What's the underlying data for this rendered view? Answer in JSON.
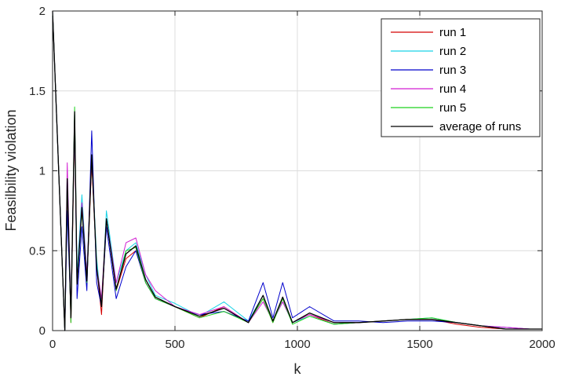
{
  "chart_data": {
    "type": "line",
    "xlabel": "k",
    "ylabel": "Feasilbility violation",
    "xlim": [
      0,
      2000
    ],
    "ylim": [
      0,
      2
    ],
    "xticks": [
      0,
      500,
      1000,
      1500,
      2000
    ],
    "yticks": [
      0,
      0.5,
      1,
      1.5,
      2
    ],
    "xtick_labels": [
      "0",
      "500",
      "1000",
      "1500",
      "2000"
    ],
    "ytick_labels": [
      "0",
      "0.5",
      "1",
      "1.5",
      "2"
    ],
    "grid": true,
    "legend_position": "top-right",
    "series": [
      {
        "name": "run 1",
        "color": "#d40000",
        "x": [
          0,
          50,
          60,
          75,
          90,
          100,
          120,
          140,
          160,
          180,
          200,
          220,
          260,
          300,
          340,
          380,
          420,
          500,
          600,
          700,
          800,
          860,
          900,
          940,
          980,
          1050,
          1150,
          1250,
          1350,
          1450,
          1550,
          1650,
          1750,
          1850,
          1950,
          2000
        ],
        "y": [
          2,
          0,
          0.9,
          0.05,
          1.3,
          0.3,
          0.8,
          0.3,
          1.05,
          0.4,
          0.1,
          0.7,
          0.25,
          0.45,
          0.5,
          0.3,
          0.2,
          0.15,
          0.08,
          0.15,
          0.05,
          0.2,
          0.05,
          0.2,
          0.05,
          0.1,
          0.04,
          0.05,
          0.06,
          0.07,
          0.07,
          0.04,
          0.02,
          0.01,
          0.01,
          0.01
        ]
      },
      {
        "name": "run 2",
        "color": "#19d2e6",
        "x": [
          0,
          50,
          60,
          75,
          90,
          100,
          120,
          140,
          160,
          180,
          200,
          220,
          260,
          300,
          340,
          380,
          420,
          500,
          600,
          700,
          800,
          860,
          900,
          940,
          980,
          1050,
          1150,
          1250,
          1350,
          1450,
          1550,
          1650,
          1750,
          1850,
          1950,
          2000
        ],
        "y": [
          2,
          0,
          1.0,
          0.1,
          1.35,
          0.35,
          0.85,
          0.35,
          1.1,
          0.45,
          0.15,
          0.75,
          0.3,
          0.5,
          0.55,
          0.35,
          0.22,
          0.17,
          0.09,
          0.18,
          0.06,
          0.22,
          0.06,
          0.18,
          0.05,
          0.09,
          0.04,
          0.05,
          0.06,
          0.07,
          0.08,
          0.05,
          0.03,
          0.01,
          0.01,
          0.01
        ]
      },
      {
        "name": "run 3",
        "color": "#0000cc",
        "x": [
          0,
          50,
          60,
          75,
          90,
          100,
          120,
          140,
          160,
          180,
          200,
          220,
          260,
          300,
          340,
          380,
          420,
          500,
          600,
          700,
          800,
          860,
          900,
          940,
          980,
          1050,
          1150,
          1250,
          1350,
          1450,
          1550,
          1650,
          1750,
          1850,
          1950,
          2000
        ],
        "y": [
          2,
          0,
          0.75,
          0.1,
          1.35,
          0.2,
          0.65,
          0.25,
          1.25,
          0.3,
          0.15,
          0.65,
          0.2,
          0.4,
          0.5,
          0.3,
          0.2,
          0.15,
          0.1,
          0.12,
          0.06,
          0.3,
          0.08,
          0.3,
          0.08,
          0.15,
          0.06,
          0.06,
          0.05,
          0.06,
          0.06,
          0.05,
          0.03,
          0.02,
          0.01,
          0.01
        ]
      },
      {
        "name": "run 4",
        "color": "#d21ed2",
        "x": [
          0,
          50,
          60,
          75,
          90,
          100,
          120,
          140,
          160,
          180,
          200,
          220,
          260,
          300,
          340,
          380,
          420,
          500,
          600,
          700,
          800,
          860,
          900,
          940,
          980,
          1050,
          1150,
          1250,
          1350,
          1450,
          1550,
          1650,
          1750,
          1850,
          1950,
          2000
        ],
        "y": [
          2,
          0,
          1.05,
          0.1,
          1.35,
          0.3,
          0.8,
          0.35,
          1.08,
          0.4,
          0.2,
          0.7,
          0.3,
          0.55,
          0.58,
          0.35,
          0.25,
          0.15,
          0.1,
          0.15,
          0.05,
          0.18,
          0.06,
          0.18,
          0.05,
          0.1,
          0.05,
          0.05,
          0.06,
          0.07,
          0.07,
          0.05,
          0.03,
          0.02,
          0.01,
          0.01
        ]
      },
      {
        "name": "run 5",
        "color": "#1ed21e",
        "x": [
          0,
          50,
          60,
          75,
          90,
          100,
          120,
          140,
          160,
          180,
          200,
          220,
          260,
          300,
          340,
          380,
          420,
          500,
          600,
          700,
          800,
          860,
          900,
          940,
          980,
          1050,
          1150,
          1250,
          1350,
          1450,
          1550,
          1650,
          1750,
          1850,
          1950,
          2000
        ],
        "y": [
          2,
          0,
          0.95,
          0.05,
          1.4,
          0.3,
          0.75,
          0.3,
          1.1,
          0.4,
          0.15,
          0.7,
          0.25,
          0.5,
          0.52,
          0.3,
          0.2,
          0.15,
          0.08,
          0.12,
          0.05,
          0.2,
          0.05,
          0.2,
          0.04,
          0.09,
          0.04,
          0.05,
          0.06,
          0.07,
          0.08,
          0.05,
          0.03,
          0.01,
          0.01,
          0.01
        ]
      },
      {
        "name": "average of runs",
        "color": "#000000",
        "x": [
          0,
          50,
          60,
          75,
          90,
          100,
          120,
          140,
          160,
          180,
          200,
          220,
          260,
          300,
          340,
          380,
          420,
          500,
          600,
          700,
          800,
          860,
          900,
          940,
          980,
          1050,
          1150,
          1250,
          1350,
          1450,
          1550,
          1650,
          1750,
          1850,
          1950,
          2000
        ],
        "y": [
          2,
          0,
          0.95,
          0.08,
          1.37,
          0.29,
          0.77,
          0.31,
          1.1,
          0.39,
          0.15,
          0.7,
          0.26,
          0.48,
          0.53,
          0.32,
          0.21,
          0.15,
          0.09,
          0.14,
          0.05,
          0.22,
          0.06,
          0.21,
          0.05,
          0.11,
          0.05,
          0.05,
          0.06,
          0.07,
          0.07,
          0.05,
          0.03,
          0.01,
          0.01,
          0.01
        ]
      }
    ]
  }
}
